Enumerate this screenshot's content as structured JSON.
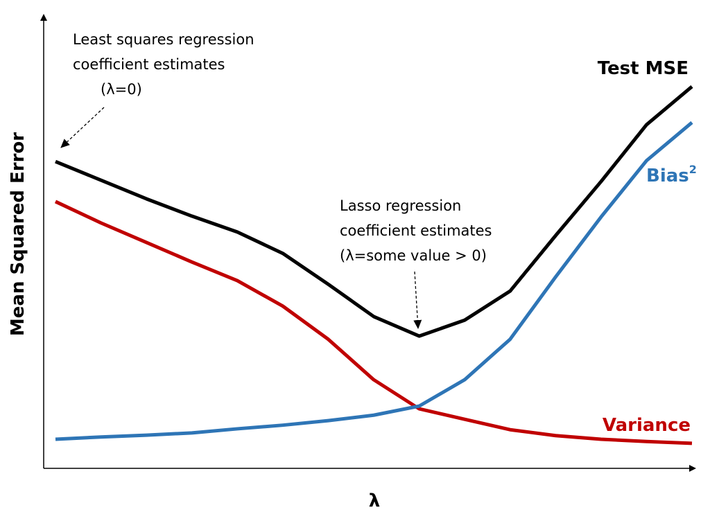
{
  "chart_data": {
    "type": "line",
    "title": "",
    "xlabel": "λ",
    "ylabel": "Mean Squared Error",
    "x": [
      0,
      1,
      2,
      3,
      4,
      5,
      6,
      7,
      8,
      9,
      10,
      11,
      12,
      13,
      14
    ],
    "xlim": [
      0,
      14.2
    ],
    "ylim": [
      0,
      100
    ],
    "grid": false,
    "ticks_shown": false,
    "series": [
      {
        "name": "Test MSE",
        "color": "#000000",
        "values": [
          67.5,
          63.4,
          59.3,
          55.5,
          52.0,
          47.3,
          40.5,
          33.4,
          29.1,
          32.6,
          39.0,
          51.2,
          63.1,
          75.6,
          84.0
        ]
      },
      {
        "name": "Variance",
        "color": "#c00000",
        "values": [
          58.7,
          54.0,
          49.7,
          45.4,
          41.3,
          35.7,
          28.4,
          19.5,
          13.1,
          10.8,
          8.5,
          7.2,
          6.4,
          5.9,
          5.5
        ]
      },
      {
        "name": "Bias",
        "name_superscript": "2",
        "color": "#2e75b6",
        "values": [
          6.4,
          6.9,
          7.3,
          7.8,
          8.7,
          9.5,
          10.5,
          11.7,
          13.7,
          19.5,
          28.4,
          42.1,
          55.3,
          67.7,
          76.1
        ]
      }
    ],
    "annotations": [
      {
        "lines": [
          "Least squares regression",
          "coefficient estimates",
          "(λ=0)"
        ],
        "points_to": {
          "series": "Test MSE",
          "x": 0
        }
      },
      {
        "lines": [
          "Lasso regression",
          "coefficient estimates",
          "(λ=some value > 0)"
        ],
        "points_to": {
          "series": "Test MSE",
          "x": 8
        }
      }
    ]
  }
}
